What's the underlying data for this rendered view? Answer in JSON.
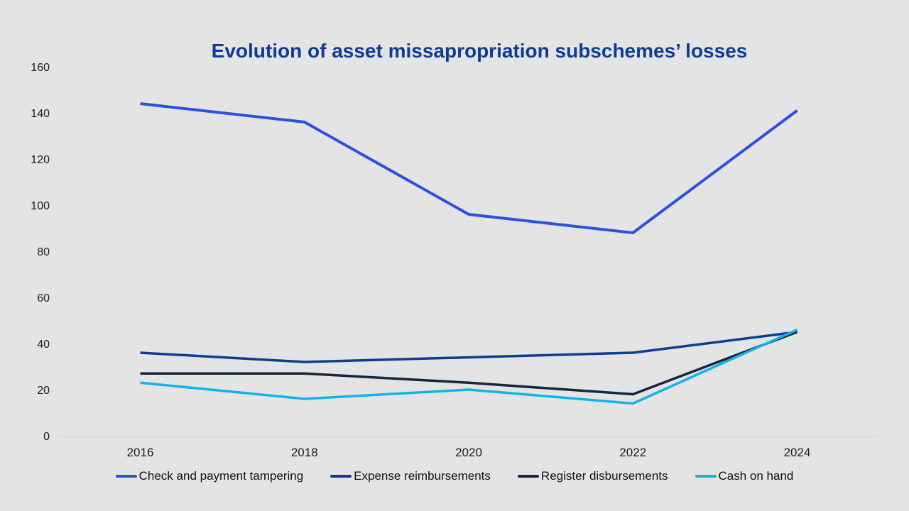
{
  "title": "Evolution of asset missapropriation subschemes’ losses",
  "colors": {
    "background": "#e5e4e4",
    "title_text": "#0d3c96",
    "axis_line": "#d6d6d6",
    "tick_text": "#1c1c1c"
  },
  "chart_data": {
    "type": "line",
    "title": "Evolution of asset missapropriation subschemes’ losses",
    "x": [
      "2016",
      "2018",
      "2020",
      "2022",
      "2024"
    ],
    "series": [
      {
        "name": "Check and payment tampering",
        "color": "#2b52de",
        "stroke_width": 4,
        "values": [
          144,
          136,
          96,
          88,
          141
        ]
      },
      {
        "name": "Expense reimbursements",
        "color": "#0b3d91",
        "stroke_width": 3.5,
        "values": [
          36,
          32,
          34,
          36,
          45
        ]
      },
      {
        "name": "Register disbursements",
        "color": "#16263b",
        "stroke_width": 3.5,
        "values": [
          27,
          27,
          23,
          18,
          45
        ]
      },
      {
        "name": "Cash on hand",
        "color": "#12b2ea",
        "stroke_width": 3.5,
        "values": [
          23,
          16,
          20,
          14,
          46
        ]
      }
    ],
    "xlabel": "",
    "ylabel": "",
    "ylim": [
      0,
      160
    ],
    "ytick_step": 20,
    "grid": false,
    "legend_position": "bottom"
  }
}
